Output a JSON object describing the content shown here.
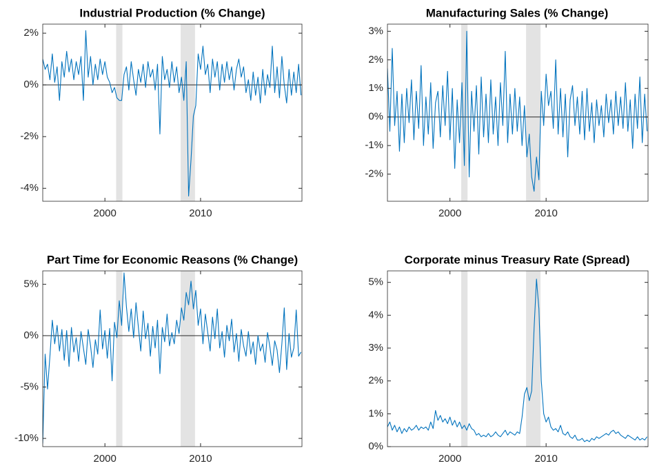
{
  "chart_data": [
    {
      "type": "line",
      "title": "Industrial Production (% Change)",
      "x": [
        1993.5,
        1993.75,
        1994,
        1994.25,
        1994.5,
        1994.75,
        1995,
        1995.25,
        1995.5,
        1995.75,
        1996,
        1996.25,
        1996.5,
        1996.75,
        1997,
        1997.25,
        1997.5,
        1997.75,
        1998,
        1998.25,
        1998.5,
        1998.75,
        1999,
        1999.25,
        1999.5,
        1999.75,
        2000,
        2000.25,
        2000.5,
        2000.75,
        2001,
        2001.25,
        2001.5,
        2001.75,
        2002,
        2002.25,
        2002.5,
        2002.75,
        2003,
        2003.25,
        2003.5,
        2003.75,
        2004,
        2004.25,
        2004.5,
        2004.75,
        2005,
        2005.25,
        2005.5,
        2005.75,
        2006,
        2006.25,
        2006.5,
        2006.75,
        2007,
        2007.25,
        2007.5,
        2007.75,
        2008,
        2008.25,
        2008.5,
        2008.75,
        2009,
        2009.25,
        2009.5,
        2009.75,
        2010,
        2010.25,
        2010.5,
        2010.75,
        2011,
        2011.25,
        2011.5,
        2011.75,
        2012,
        2012.25,
        2012.5,
        2012.75,
        2013,
        2013.25,
        2013.5,
        2013.75,
        2014,
        2014.25,
        2014.5,
        2014.75,
        2015,
        2015.25,
        2015.5,
        2015.75,
        2016,
        2016.25,
        2016.5,
        2016.75,
        2017,
        2017.25,
        2017.5,
        2017.75,
        2018,
        2018.25,
        2018.5,
        2018.75,
        2019,
        2019.25,
        2019.5,
        2019.75,
        2020,
        2020.25,
        2020.5
      ],
      "values": [
        1.0,
        0.6,
        0.8,
        0.2,
        1.2,
        0.1,
        0.7,
        -0.6,
        0.9,
        0.3,
        1.3,
        0.5,
        1.0,
        0.2,
        0.9,
        0.4,
        1.1,
        -0.6,
        2.1,
        0.3,
        1.1,
        0.0,
        0.8,
        0.2,
        1.0,
        0.4,
        0.9,
        0.3,
        0.1,
        -0.3,
        -0.1,
        -0.5,
        -0.6,
        -0.6,
        0.4,
        0.7,
        -0.2,
        0.9,
        0.2,
        -0.4,
        0.6,
        0.1,
        0.8,
        -0.1,
        0.9,
        0.3,
        0.6,
        -0.2,
        0.8,
        -1.9,
        1.1,
        0.2,
        0.6,
        -0.1,
        0.9,
        0.1,
        0.7,
        -0.3,
        0.3,
        -0.6,
        0.9,
        -4.3,
        -2.9,
        -1.2,
        -0.8,
        1.2,
        0.6,
        1.5,
        0.4,
        0.8,
        -0.3,
        1.0,
        0.3,
        0.9,
        -0.2,
        0.8,
        0.1,
        0.9,
        0.2,
        0.7,
        -0.2,
        0.6,
        1.0,
        0.3,
        0.7,
        -0.3,
        0.2,
        -0.6,
        0.5,
        -0.4,
        0.3,
        -0.7,
        0.6,
        -0.4,
        0.4,
        -0.1,
        1.5,
        -0.3,
        0.7,
        -0.5,
        1.1,
        0.0,
        -0.7,
        0.6,
        -0.4,
        0.5,
        -0.3,
        0.8,
        -0.4
      ],
      "color": "#0072bd",
      "shading": [
        [
          2001.17,
          2001.83
        ],
        [
          2007.92,
          2009.42
        ]
      ],
      "zero_line": true,
      "xlim": [
        1993.5,
        2020.6
      ],
      "xticks": [
        2000,
        2010
      ],
      "ylim": [
        -4.5,
        2.35
      ],
      "yticks": [
        {
          "value": -4,
          "label": "-4%"
        },
        {
          "value": -2,
          "label": "-2%"
        },
        {
          "value": 0,
          "label": "0%"
        },
        {
          "value": 2,
          "label": "2%"
        }
      ]
    },
    {
      "type": "line",
      "title": "Manufacturing Sales (% Change)",
      "x": [
        1993.5,
        1993.75,
        1994,
        1994.25,
        1994.5,
        1994.75,
        1995,
        1995.25,
        1995.5,
        1995.75,
        1996,
        1996.25,
        1996.5,
        1996.75,
        1997,
        1997.25,
        1997.5,
        1997.75,
        1998,
        1998.25,
        1998.5,
        1998.75,
        1999,
        1999.25,
        1999.5,
        1999.75,
        2000,
        2000.25,
        2000.5,
        2000.75,
        2001,
        2001.25,
        2001.5,
        2001.75,
        2002,
        2002.25,
        2002.5,
        2002.75,
        2003,
        2003.25,
        2003.5,
        2003.75,
        2004,
        2004.25,
        2004.5,
        2004.75,
        2005,
        2005.25,
        2005.5,
        2005.75,
        2006,
        2006.25,
        2006.5,
        2006.75,
        2007,
        2007.25,
        2007.5,
        2007.75,
        2008,
        2008.25,
        2008.5,
        2008.75,
        2009,
        2009.25,
        2009.5,
        2009.75,
        2010,
        2010.25,
        2010.5,
        2010.75,
        2011,
        2011.25,
        2011.5,
        2011.75,
        2012,
        2012.25,
        2012.5,
        2012.75,
        2013,
        2013.25,
        2013.5,
        2013.75,
        2014,
        2014.25,
        2014.5,
        2014.75,
        2015,
        2015.25,
        2015.5,
        2015.75,
        2016,
        2016.25,
        2016.5,
        2016.75,
        2017,
        2017.25,
        2017.5,
        2017.75,
        2018,
        2018.25,
        2018.5,
        2018.75,
        2019,
        2019.25,
        2019.5,
        2019.75,
        2020,
        2020.25,
        2020.5
      ],
      "values": [
        1.7,
        -0.5,
        2.4,
        -0.3,
        0.9,
        -1.2,
        0.8,
        -0.9,
        1.0,
        -0.2,
        1.3,
        -0.8,
        0.9,
        -0.4,
        1.8,
        -1.0,
        0.7,
        -0.6,
        1.2,
        -1.1,
        0.5,
        0.9,
        -0.7,
        1.1,
        -0.3,
        1.6,
        -0.8,
        1.0,
        -1.8,
        0.6,
        -0.9,
        1.2,
        -1.7,
        3.0,
        -2.1,
        0.9,
        -0.5,
        1.1,
        -1.3,
        1.4,
        -0.7,
        0.8,
        -0.9,
        1.3,
        -0.6,
        0.7,
        -1.0,
        1.2,
        -0.3,
        2.3,
        -0.9,
        0.8,
        -0.6,
        1.0,
        -0.5,
        0.7,
        -1.0,
        0.4,
        -1.4,
        -0.6,
        -2.1,
        -2.6,
        -1.4,
        -2.2,
        0.9,
        -0.3,
        1.5,
        0.4,
        0.9,
        -0.4,
        2.0,
        -0.6,
        1.0,
        -0.7,
        0.8,
        -1.4,
        0.6,
        1.1,
        -0.3,
        0.7,
        -0.6,
        0.9,
        -0.8,
        1.0,
        -0.5,
        0.5,
        -0.9,
        0.6,
        -0.3,
        0.4,
        -0.7,
        0.8,
        -0.2,
        0.6,
        -0.6,
        0.9,
        -0.3,
        0.7,
        -0.4,
        1.2,
        -0.5,
        0.6,
        -1.1,
        0.8,
        -0.4,
        1.4,
        -0.9,
        0.8,
        -0.5
      ],
      "color": "#0072bd",
      "shading": [
        [
          2001.17,
          2001.83
        ],
        [
          2007.92,
          2009.42
        ]
      ],
      "zero_line": true,
      "xlim": [
        1993.5,
        2020.6
      ],
      "xticks": [
        2000,
        2010
      ],
      "ylim": [
        -2.95,
        3.25
      ],
      "yticks": [
        {
          "value": -2,
          "label": "-2%"
        },
        {
          "value": -1,
          "label": "-1%"
        },
        {
          "value": 0,
          "label": "0%"
        },
        {
          "value": 1,
          "label": "1%"
        },
        {
          "value": 2,
          "label": "2%"
        },
        {
          "value": 3,
          "label": "3%"
        }
      ]
    },
    {
      "type": "line",
      "title": "Part Time for Economic Reasons (% Change)",
      "x": [
        1993.5,
        1993.75,
        1994,
        1994.25,
        1994.5,
        1994.75,
        1995,
        1995.25,
        1995.5,
        1995.75,
        1996,
        1996.25,
        1996.5,
        1996.75,
        1997,
        1997.25,
        1997.5,
        1997.75,
        1998,
        1998.25,
        1998.5,
        1998.75,
        1999,
        1999.25,
        1999.5,
        1999.75,
        2000,
        2000.25,
        2000.5,
        2000.75,
        2001,
        2001.25,
        2001.5,
        2001.75,
        2002,
        2002.25,
        2002.5,
        2002.75,
        2003,
        2003.25,
        2003.5,
        2003.75,
        2004,
        2004.25,
        2004.5,
        2004.75,
        2005,
        2005.25,
        2005.5,
        2005.75,
        2006,
        2006.25,
        2006.5,
        2006.75,
        2007,
        2007.25,
        2007.5,
        2007.75,
        2008,
        2008.25,
        2008.5,
        2008.75,
        2009,
        2009.25,
        2009.5,
        2009.75,
        2010,
        2010.25,
        2010.5,
        2010.75,
        2011,
        2011.25,
        2011.5,
        2011.75,
        2012,
        2012.25,
        2012.5,
        2012.75,
        2013,
        2013.25,
        2013.5,
        2013.75,
        2014,
        2014.25,
        2014.5,
        2014.75,
        2015,
        2015.25,
        2015.5,
        2015.75,
        2016,
        2016.25,
        2016.5,
        2016.75,
        2017,
        2017.25,
        2017.5,
        2017.75,
        2018,
        2018.25,
        2018.5,
        2018.75,
        2019,
        2019.25,
        2019.5,
        2019.75,
        2020,
        2020.25,
        2020.5
      ],
      "values": [
        -10.5,
        -1.8,
        -5.2,
        -2.0,
        1.5,
        -0.8,
        1.0,
        -1.5,
        0.6,
        -2.4,
        0.5,
        -3.0,
        0.8,
        -1.6,
        -0.2,
        -2.5,
        0.4,
        -1.2,
        -2.8,
        0.6,
        -1.0,
        -3.1,
        -0.4,
        -1.8,
        2.5,
        -1.3,
        0.5,
        -2.2,
        0.7,
        -4.4,
        1.3,
        -0.2,
        3.4,
        1.0,
        6.1,
        2.8,
        0.4,
        2.6,
        -0.2,
        3.2,
        0.8,
        -1.5,
        2.4,
        -0.3,
        1.2,
        -2.0,
        0.9,
        -1.2,
        1.5,
        -3.7,
        0.8,
        -0.6,
        2.1,
        -1.0,
        0.3,
        -0.8,
        1.5,
        0.2,
        2.7,
        1.5,
        4.2,
        3.0,
        5.3,
        2.6,
        4.4,
        1.0,
        2.6,
        -0.8,
        2.1,
        0.3,
        -1.5,
        1.8,
        -0.3,
        2.6,
        -1.2,
        0.4,
        -2.1,
        1.0,
        -0.5,
        1.6,
        -1.6,
        0.2,
        -2.5,
        0.6,
        -1.0,
        -2.0,
        0.4,
        -1.8,
        -0.6,
        -2.8,
        0.0,
        -1.5,
        -0.8,
        -2.6,
        0.3,
        -1.1,
        -2.9,
        -0.5,
        -1.4,
        -3.6,
        -0.8,
        2.7,
        -3.3,
        0.2,
        -2.1,
        -1.2,
        2.5,
        -2.0,
        -1.6
      ],
      "color": "#0072bd",
      "shading": [
        [
          2001.17,
          2001.83
        ],
        [
          2007.92,
          2009.42
        ]
      ],
      "zero_line": true,
      "xlim": [
        1993.5,
        2020.6
      ],
      "xticks": [
        2000,
        2010
      ],
      "ylim": [
        -10.8,
        6.3
      ],
      "yticks": [
        {
          "value": -10,
          "label": "-10%"
        },
        {
          "value": -5,
          "label": "-5%"
        },
        {
          "value": 0,
          "label": "0%"
        },
        {
          "value": 5,
          "label": "5%"
        }
      ]
    },
    {
      "type": "line",
      "title": "Corporate minus Treasury Rate (Spread)",
      "x": [
        1993.5,
        1993.75,
        1994,
        1994.25,
        1994.5,
        1994.75,
        1995,
        1995.25,
        1995.5,
        1995.75,
        1996,
        1996.25,
        1996.5,
        1996.75,
        1997,
        1997.25,
        1997.5,
        1997.75,
        1998,
        1998.25,
        1998.5,
        1998.75,
        1999,
        1999.25,
        1999.5,
        1999.75,
        2000,
        2000.25,
        2000.5,
        2000.75,
        2001,
        2001.25,
        2001.5,
        2001.75,
        2002,
        2002.25,
        2002.5,
        2002.75,
        2003,
        2003.25,
        2003.5,
        2003.75,
        2004,
        2004.25,
        2004.5,
        2004.75,
        2005,
        2005.25,
        2005.5,
        2005.75,
        2006,
        2006.25,
        2006.5,
        2006.75,
        2007,
        2007.25,
        2007.5,
        2007.75,
        2008,
        2008.25,
        2008.5,
        2008.75,
        2009,
        2009.25,
        2009.5,
        2009.75,
        2010,
        2010.25,
        2010.5,
        2010.75,
        2011,
        2011.25,
        2011.5,
        2011.75,
        2012,
        2012.25,
        2012.5,
        2012.75,
        2013,
        2013.25,
        2013.5,
        2013.75,
        2014,
        2014.25,
        2014.5,
        2014.75,
        2015,
        2015.25,
        2015.5,
        2015.75,
        2016,
        2016.25,
        2016.5,
        2016.75,
        2017,
        2017.25,
        2017.5,
        2017.75,
        2018,
        2018.25,
        2018.5,
        2018.75,
        2019,
        2019.25,
        2019.5,
        2019.75,
        2020,
        2020.25,
        2020.5
      ],
      "values": [
        0.6,
        0.75,
        0.5,
        0.65,
        0.45,
        0.6,
        0.4,
        0.55,
        0.45,
        0.6,
        0.5,
        0.55,
        0.65,
        0.5,
        0.6,
        0.55,
        0.6,
        0.5,
        0.75,
        0.55,
        1.1,
        0.8,
        0.95,
        0.75,
        0.85,
        0.7,
        0.9,
        0.65,
        0.8,
        0.6,
        0.75,
        0.55,
        0.65,
        0.5,
        0.7,
        0.55,
        0.5,
        0.35,
        0.4,
        0.3,
        0.35,
        0.3,
        0.4,
        0.3,
        0.35,
        0.45,
        0.35,
        0.3,
        0.4,
        0.5,
        0.35,
        0.45,
        0.4,
        0.35,
        0.45,
        0.4,
        0.9,
        1.6,
        1.8,
        1.4,
        1.7,
        3.6,
        5.1,
        4.2,
        2.0,
        1.0,
        0.75,
        0.9,
        0.6,
        0.5,
        0.55,
        0.45,
        0.65,
        0.4,
        0.35,
        0.45,
        0.3,
        0.25,
        0.35,
        0.2,
        0.2,
        0.25,
        0.15,
        0.2,
        0.15,
        0.25,
        0.2,
        0.3,
        0.25,
        0.3,
        0.35,
        0.4,
        0.35,
        0.45,
        0.5,
        0.4,
        0.45,
        0.35,
        0.3,
        0.25,
        0.35,
        0.3,
        0.25,
        0.2,
        0.3,
        0.2,
        0.25,
        0.2,
        0.3
      ],
      "color": "#0072bd",
      "shading": [
        [
          2001.17,
          2001.83
        ],
        [
          2007.92,
          2009.42
        ]
      ],
      "zero_line": false,
      "xlim": [
        1993.5,
        2020.6
      ],
      "xticks": [
        2000,
        2010
      ],
      "ylim": [
        0,
        5.35
      ],
      "yticks": [
        {
          "value": 0,
          "label": "0%"
        },
        {
          "value": 1,
          "label": "1%"
        },
        {
          "value": 2,
          "label": "2%"
        },
        {
          "value": 3,
          "label": "3%"
        },
        {
          "value": 4,
          "label": "4%"
        },
        {
          "value": 5,
          "label": "5%"
        }
      ]
    }
  ]
}
